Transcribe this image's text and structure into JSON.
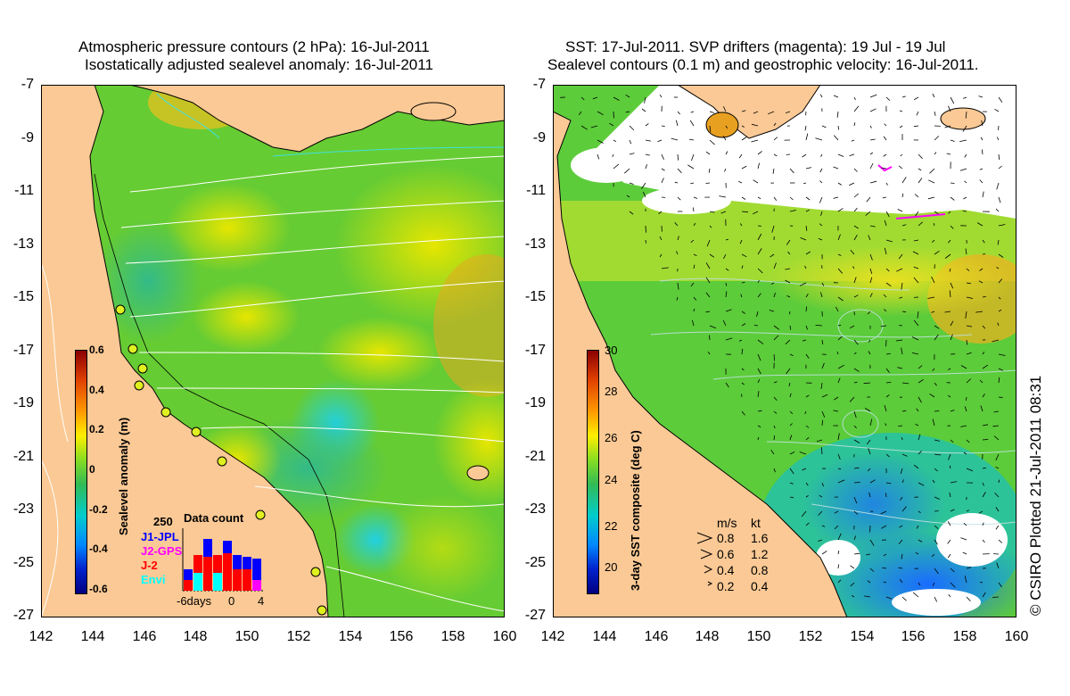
{
  "left_panel": {
    "title_line1": "Atmospheric pressure contours (2 hPa): 16-Jul-2011",
    "title_line2": "Isostatically adjusted sealevel anomaly: 16-Jul-2011",
    "colorbar": {
      "label": "Sealevel anomaly (m)",
      "ticks": [
        "0.6",
        "0.4",
        "0.2",
        "0",
        "-0.2",
        "-0.4",
        "-0.6"
      ],
      "colors": [
        "#8b0000",
        "#ff8c00",
        "#ffff00",
        "#66cc33",
        "#00cccc",
        "#0066ff",
        "#000080"
      ]
    },
    "data_count": {
      "title": "Data count",
      "max_label": "250",
      "series": [
        {
          "name": "J1-JPL",
          "color": "#0000ff"
        },
        {
          "name": "J2-GPS",
          "color": "#ff00ff"
        },
        {
          "name": "J-2",
          "color": "#ff0000"
        },
        {
          "name": "Envi",
          "color": "#00ffff"
        }
      ],
      "xaxis": [
        "-6days",
        "0",
        "4"
      ]
    }
  },
  "right_panel": {
    "title_line1": "SST: 17-Jul-2011. SVP drifters (magenta): 19 Jul - 19 Jul",
    "title_line2": "Sealevel contours (0.1 m) and geostrophic velocity: 16-Jul-2011.",
    "colorbar": {
      "label": "3-day SST composite (deg C)",
      "ticks": [
        "30",
        "28",
        "26",
        "24",
        "22",
        "20"
      ],
      "colors": [
        "#8b0000",
        "#ff8c00",
        "#ffff00",
        "#66cc33",
        "#00cccc",
        "#0066ff",
        "#000080"
      ]
    },
    "velocity_legend": {
      "header_ms": "m/s",
      "header_kt": "kt",
      "rows": [
        {
          "ms": "0.8",
          "kt": "1.6"
        },
        {
          "ms": "0.6",
          "kt": "1.2"
        },
        {
          "ms": "0.4",
          "kt": "0.8"
        },
        {
          "ms": "0.2",
          "kt": "0.4"
        }
      ]
    }
  },
  "axes": {
    "lat_ticks": [
      "-7",
      "-9",
      "-11",
      "-13",
      "-15",
      "-17",
      "-19",
      "-21",
      "-23",
      "-25",
      "-27"
    ],
    "lon_ticks": [
      "142",
      "144",
      "146",
      "148",
      "150",
      "152",
      "154",
      "156",
      "158",
      "160"
    ]
  },
  "credit": "© CSIRO Plotted 21-Jul-2011 08:31",
  "colors": {
    "land": "#fbc995",
    "sea_base": "#66cc33",
    "contour": "#ffffff"
  }
}
